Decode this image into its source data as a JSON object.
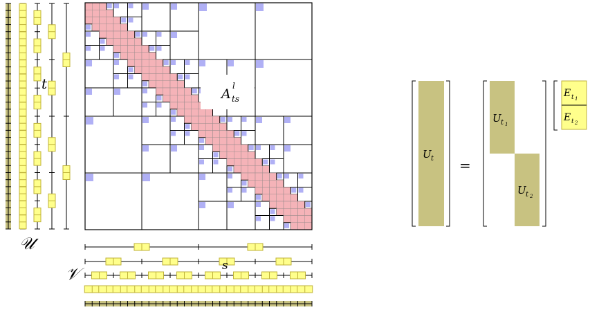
{
  "colors": {
    "basis": "#c8c281",
    "transfer": "#ffff8c",
    "transfer_stroke": "#bfb23a",
    "inadmissible": "#f5b3b8",
    "lowrank": "#b0b0f5",
    "line": "#000000"
  },
  "labels": {
    "U_cal": "𝒰",
    "V_cal": "𝒱",
    "t": "t",
    "s": "s",
    "A_base": "A",
    "A_sup": "l",
    "A_sub": "ts",
    "Ut_base": "U",
    "Ut_sub": "t",
    "equals": "=",
    "Ut1_base": "U",
    "Ut1_sub": "t",
    "Ut1_subsub": "1",
    "Ut2_base": "U",
    "Ut2_sub": "t",
    "Ut2_subsub": "2",
    "Et1_base": "E",
    "Et1_sub": "t",
    "Et1_subsub": "1",
    "Et2_base": "E",
    "Et2_sub": "t",
    "Et2_subsub": "2"
  }
}
